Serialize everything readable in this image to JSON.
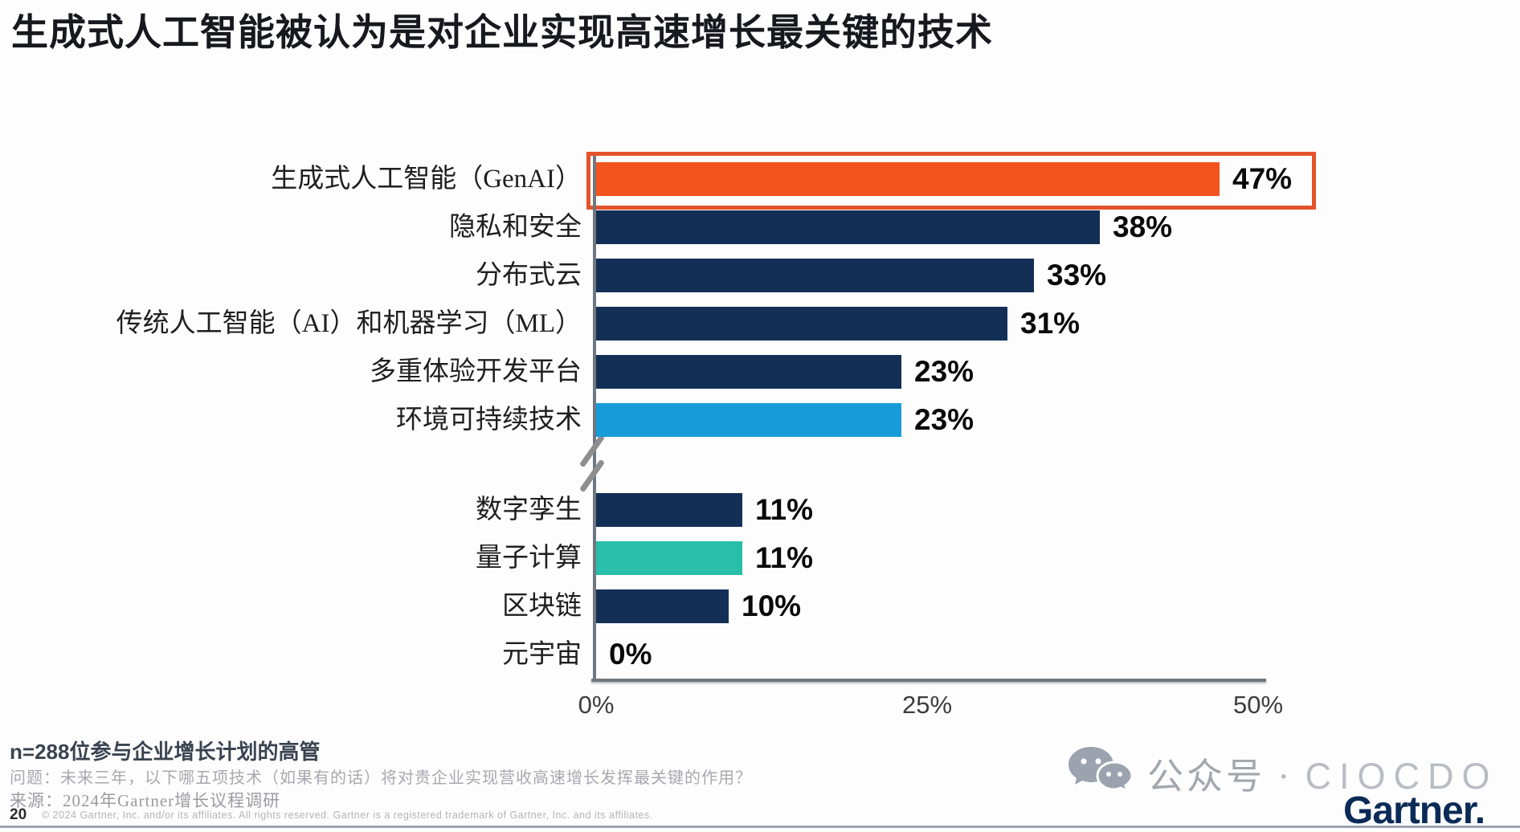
{
  "title": "生成式人工智能被认为是对企业实现高速增长最关键的技术",
  "chart_data": {
    "type": "bar",
    "orientation": "horizontal",
    "title": "生成式人工智能被认为是对企业实现高速增长最关键的技术",
    "categories": [
      "生成式人工智能（GenAI）",
      "隐私和安全",
      "分布式云",
      "传统人工智能（AI）和机器学习（ML）",
      "多重体验开发平台",
      "环境可持续技术",
      "数字孪生",
      "量子计算",
      "区块链",
      "元宇宙"
    ],
    "values": [
      47,
      38,
      33,
      31,
      23,
      23,
      11,
      11,
      10,
      0
    ],
    "value_labels": [
      "47%",
      "38%",
      "33%",
      "31%",
      "23%",
      "23%",
      "11%",
      "11%",
      "10%",
      "0%"
    ],
    "bar_colors": [
      "#f3531d",
      "#132f56",
      "#132f56",
      "#132f56",
      "#132f56",
      "#189cd8",
      "#132f56",
      "#29bea9",
      "#132f56",
      "#132f56"
    ],
    "highlight_index": 0,
    "highlight_border_color": "#e4532b",
    "axis_break_after_index": 5,
    "tick_labels": [
      "0%",
      "25%",
      "50%"
    ],
    "xlim": [
      0,
      50
    ],
    "grid": false,
    "legend": false
  },
  "footnotes": {
    "sample": "n=288位参与企业增长计划的高管",
    "question": "问题：未来三年，以下哪五项技术（如果有的话）将对贵企业实现营收高速增长发挥最关键的作用？",
    "source": "来源：2024年Gartner增长议程调研"
  },
  "page": {
    "number": "20",
    "copyright": "© 2024 Gartner, Inc. and/or its affiliates. All rights reserved. Gartner is a registered trademark of Gartner, Inc. and its affiliates."
  },
  "branding": {
    "wechat_icon": "wechat-chat-bubbles",
    "wechat_label": "公众号",
    "separator": "·",
    "account_name": "CIOCDO",
    "gartner_logo_text": "Gartner."
  },
  "colors": {
    "orange": "#f3531d",
    "navy": "#132f56",
    "light_blue": "#189cd8",
    "teal": "#29bea9",
    "axis_gray": "#6f7880",
    "gartner_navy": "#0a2b57"
  }
}
